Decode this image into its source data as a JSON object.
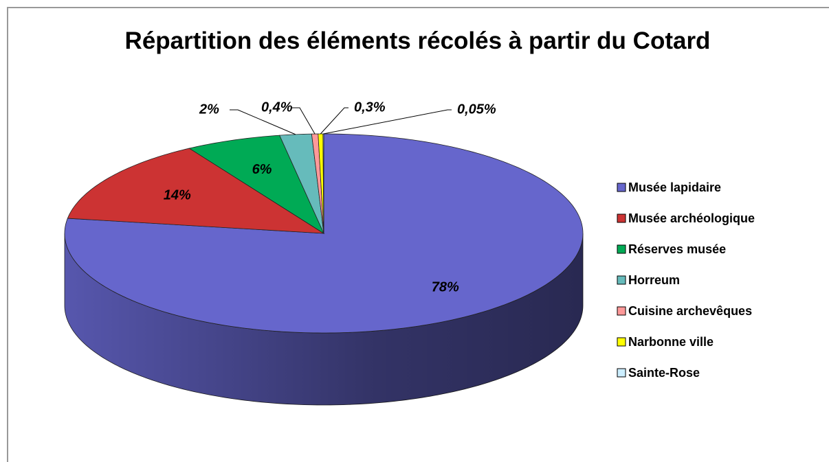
{
  "chart_data": {
    "type": "pie",
    "title": "Répartition des éléments récolés à partir du Cotard",
    "categories": [
      "Musée lapidaire",
      "Musée archéologique",
      "Réserves musée",
      "Horreum",
      "Cuisine archevêques",
      "Narbonne ville",
      "Sainte-Rose"
    ],
    "values": [
      78,
      14,
      6,
      2,
      0.4,
      0.3,
      0.05
    ],
    "value_labels": [
      "78%",
      "14%",
      "6%",
      "2%",
      "0,4%",
      "0,3%",
      "0,05%"
    ],
    "colors": [
      "#6666cc",
      "#cc3333",
      "#00aa55",
      "#66bbbb",
      "#ff9999",
      "#ffff00",
      "#cceeff"
    ],
    "legend": "right"
  }
}
